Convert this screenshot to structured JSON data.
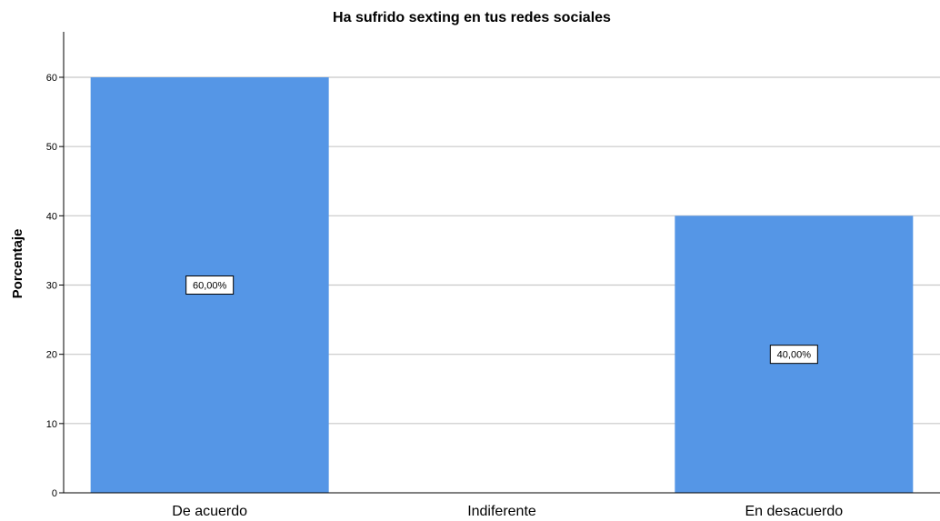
{
  "chart_data": {
    "type": "bar",
    "title": "Ha sufrido sexting en tus redes sociales",
    "xlabel": "",
    "ylabel": "Porcentaje",
    "categories": [
      "De acuerdo",
      "Indiferente",
      "En desacuerdo"
    ],
    "values": [
      60,
      0,
      40
    ],
    "data_labels": [
      "60,00%",
      "",
      "40,00%"
    ],
    "ylim": [
      0,
      65
    ],
    "yticks": [
      0,
      10,
      20,
      30,
      40,
      50,
      60
    ],
    "grid": true,
    "bar_color": "#5596E6",
    "gridline_color": "#c8c8c8"
  }
}
